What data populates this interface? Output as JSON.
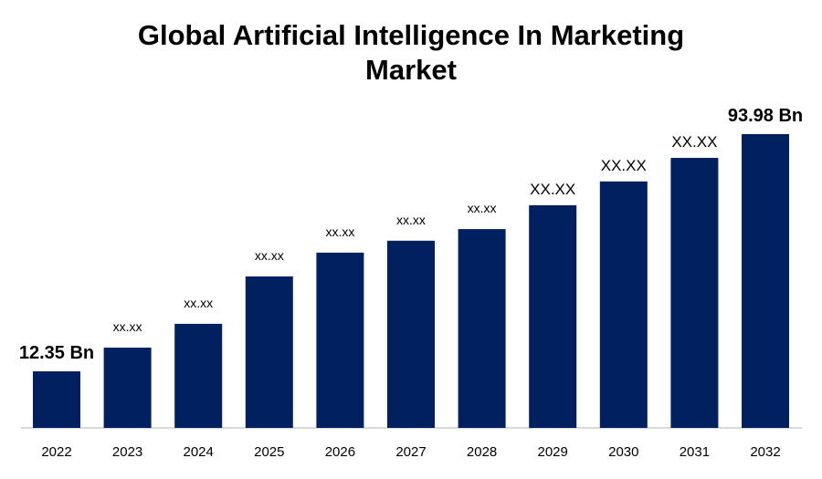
{
  "chart_data": {
    "type": "bar",
    "title": "Global Artificial Intelligence In Marketing Market",
    "title_lines": [
      "Global Artificial Intelligence In Marketing",
      "Market"
    ],
    "xlabel": "",
    "ylabel": "",
    "categories": [
      "2022",
      "2023",
      "2024",
      "2025",
      "2026",
      "2027",
      "2028",
      "2029",
      "2030",
      "2031",
      "2032"
    ],
    "values": [
      12.35,
      20.5,
      28.7,
      45.0,
      53.2,
      57.3,
      61.3,
      69.5,
      77.7,
      85.8,
      93.98
    ],
    "data_labels": [
      "12.35 Bn",
      "xx.xx",
      "xx.xx",
      "xx.xx",
      "xx.xx",
      "xx.xx",
      "xx.xx",
      "XX.XX",
      "XX.XX",
      "XX.XX",
      "93.98 Bn"
    ],
    "unit": "Bn",
    "grid": false,
    "legend": "none",
    "bar_color": "#002060",
    "axis_color": "#d9d9d9"
  }
}
